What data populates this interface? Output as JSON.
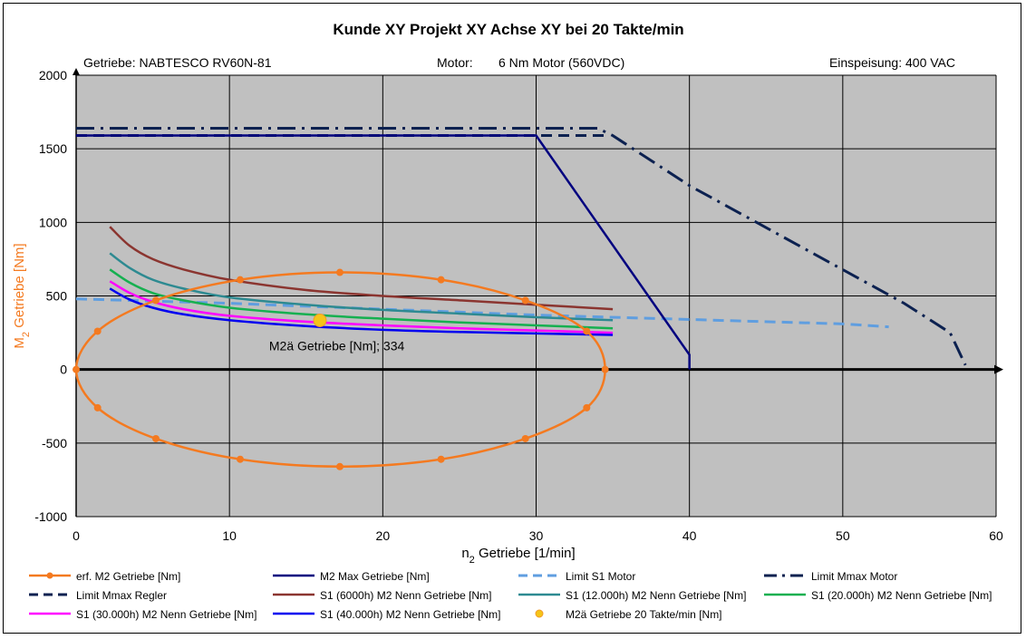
{
  "chart_data": {
    "type": "line",
    "title": "Kunde XY   Projekt XY   Achse XY   bei 20 Takte/min",
    "info": {
      "gearbox": "Getriebe:  NABTESCO  RV60N-81",
      "motor_label": "Motor:",
      "motor": "6 Nm Motor (560VDC)",
      "supply": "Einspeisung: 400 VAC"
    },
    "xlabel": {
      "main": "n",
      "sub": "2",
      "rest": " Getriebe [1/min]"
    },
    "ylabel": {
      "main": "M",
      "sub": "2",
      "rest": " Getriebe [Nm]"
    },
    "xlim": [
      0,
      60
    ],
    "ylim": [
      -1000,
      2000
    ],
    "xticks": [
      "0",
      "10",
      "20",
      "30",
      "40",
      "50",
      "60"
    ],
    "yticks": [
      "-1000",
      "-500",
      "0",
      "500",
      "1000",
      "1500",
      "2000"
    ],
    "grid": true,
    "plot_background": "#c0c0c0",
    "legend_position": "bottom",
    "series": [
      {
        "name": "erf. M2 Getriebe [Nm]",
        "color": "#f47a20",
        "style": "solid-marker",
        "x": [
          0,
          1.4,
          5.2,
          10.7,
          17.2,
          23.8,
          29.3,
          33.3,
          34.5,
          33.3,
          29.3,
          23.8,
          17.2,
          10.7,
          5.2,
          1.4,
          0
        ],
        "y": [
          0,
          260,
          470,
          610,
          660,
          610,
          470,
          260,
          0,
          -260,
          -470,
          -610,
          -660,
          -610,
          -470,
          -260,
          0
        ]
      },
      {
        "name": "M2 Max Getriebe [Nm]",
        "color": "#00007f",
        "style": "solid",
        "x": [
          0,
          30,
          40,
          40
        ],
        "y": [
          1590,
          1590,
          100,
          0
        ]
      },
      {
        "name": "Limit S1 Motor",
        "color": "#5f9ee0",
        "style": "dash",
        "x": [
          0,
          10,
          20,
          30,
          40,
          50,
          53
        ],
        "y": [
          480,
          450,
          410,
          370,
          340,
          310,
          290
        ]
      },
      {
        "name": "Limit Mmax Motor",
        "color": "#0c2150",
        "style": "dashdot",
        "x": [
          0,
          34,
          35,
          40,
          47,
          54,
          57,
          58
        ],
        "y": [
          1640,
          1640,
          1590,
          1250,
          850,
          450,
          250,
          30
        ]
      },
      {
        "name": "Limit Mmax Regler",
        "color": "#0c2150",
        "style": "dash",
        "x": [
          0,
          34.5
        ],
        "y": [
          1590,
          1590
        ]
      },
      {
        "name": "S1 (6000h)  M2 Nenn Getriebe [Nm]",
        "color": "#8b3530",
        "style": "solid",
        "x": [
          2.2,
          3.5,
          5,
          7,
          10,
          15,
          20,
          25,
          30,
          35
        ],
        "y": [
          970,
          840,
          750,
          680,
          610,
          540,
          500,
          470,
          440,
          410
        ]
      },
      {
        "name": "S1 (12.000h)  M2 Nenn Getriebe [Nm]",
        "color": "#2d8a91",
        "style": "solid",
        "x": [
          2.2,
          3.5,
          5,
          7,
          10,
          15,
          20,
          25,
          30,
          35
        ],
        "y": [
          790,
          690,
          610,
          550,
          490,
          440,
          405,
          380,
          355,
          335
        ]
      },
      {
        "name": "S1 (20.000h)  M2 Nenn Getriebe [Nm]",
        "color": "#16b050",
        "style": "solid",
        "x": [
          2.2,
          3.5,
          5,
          7,
          10,
          15,
          20,
          25,
          30,
          35
        ],
        "y": [
          680,
          590,
          520,
          470,
          420,
          375,
          345,
          320,
          300,
          280
        ]
      },
      {
        "name": "S1 (30.000h)  M2 Nenn Getriebe [Nm]",
        "color": "#ff00ff",
        "style": "solid",
        "x": [
          2.2,
          3.5,
          5,
          7,
          10,
          15,
          20,
          25,
          30,
          35
        ],
        "y": [
          600,
          520,
          460,
          410,
          365,
          325,
          300,
          280,
          265,
          250
        ]
      },
      {
        "name": "S1 (40.000h)  M2 Nenn Getriebe [Nm]",
        "color": "#0000f0",
        "style": "solid",
        "x": [
          2.2,
          3.5,
          5,
          7,
          10,
          15,
          20,
          25,
          30,
          35
        ],
        "y": [
          550,
          475,
          420,
          375,
          335,
          295,
          270,
          255,
          245,
          235
        ]
      },
      {
        "name": "M2ä Getriebe 20 Takte/min [Nm]",
        "color": "#f5c518",
        "style": "point",
        "x": [
          15.9
        ],
        "y": [
          334
        ]
      }
    ],
    "annotations": [
      {
        "text": "M2ä Getriebe [Nm]; 334",
        "x": 17,
        "y": 130
      }
    ]
  }
}
